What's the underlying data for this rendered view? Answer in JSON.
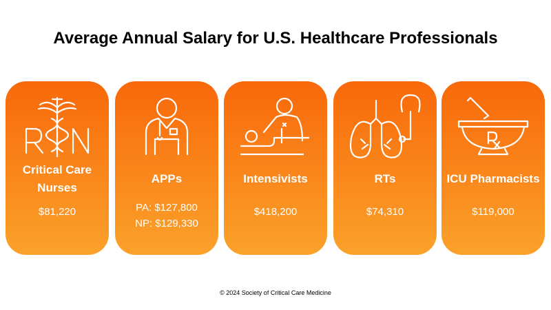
{
  "header": {
    "title": "Average Annual Salary for U.S. Healthcare Professionals"
  },
  "cards": [
    {
      "label": "Critical Care Nurses",
      "values": [
        "$81,220"
      ]
    },
    {
      "label": "APPs",
      "values": [
        "PA: $127,800",
        "NP: $129,330"
      ]
    },
    {
      "label": "Intensivists",
      "values": [
        "$418,200"
      ]
    },
    {
      "label": "RTs",
      "values": [
        "$74,310"
      ]
    },
    {
      "label": "ICU Pharmacists",
      "values": [
        "$119,000"
      ]
    }
  ],
  "footer": {
    "text": "© 2024 Society of Critical Care Medicine"
  }
}
